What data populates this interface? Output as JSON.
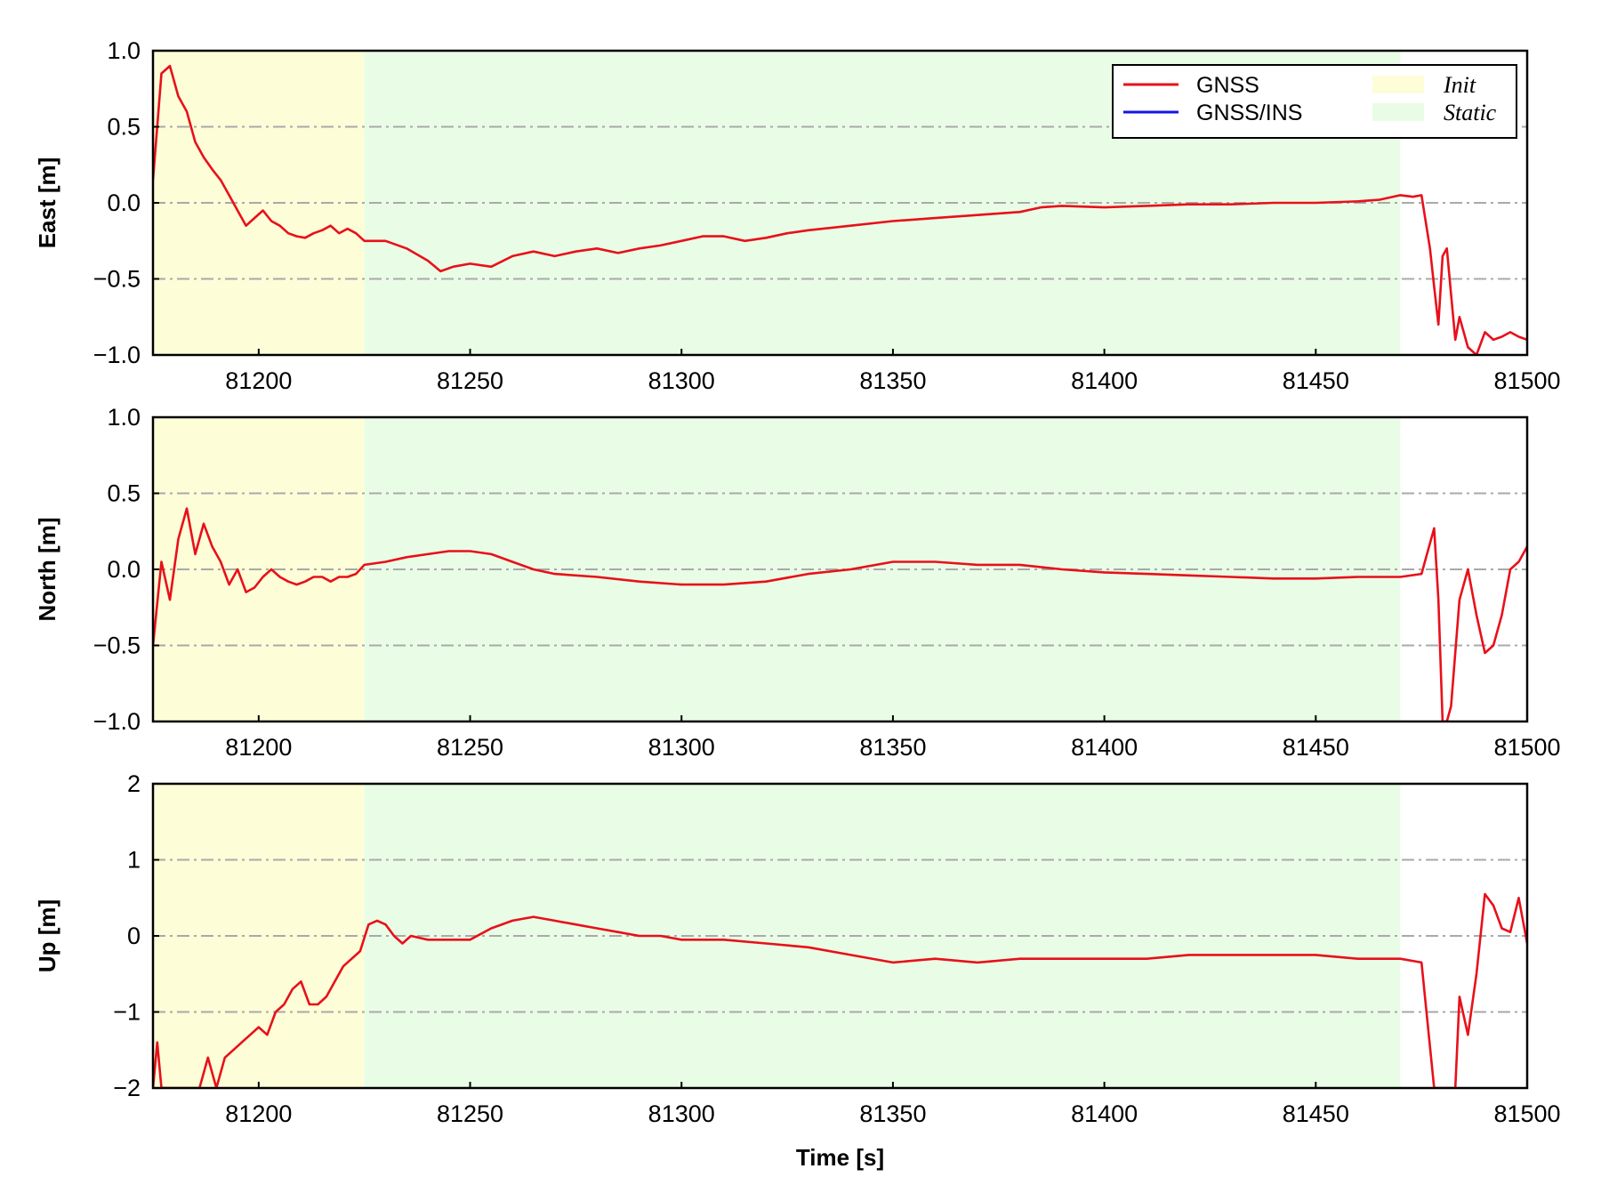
{
  "chart_data": {
    "type": "line",
    "xlabel": "Time [s]",
    "xlim": [
      81175,
      81500
    ],
    "xticks": [
      81200,
      81250,
      81300,
      81350,
      81400,
      81450,
      81500
    ],
    "grid": "horizontal dash-dot",
    "legend": {
      "placement": "top-right of first panel",
      "lines": [
        {
          "name": "GNSS",
          "color": "#e8101a"
        },
        {
          "name": "GNSS/INS",
          "color": "#1515e8"
        }
      ],
      "shades": [
        {
          "name": "Init",
          "color": "#fdfdd8"
        },
        {
          "name": "Static",
          "color": "#e9fde6"
        }
      ]
    },
    "regions": [
      {
        "name": "Init",
        "x": [
          81175,
          81225
        ]
      },
      {
        "name": "Static",
        "x": [
          81225,
          81470
        ]
      }
    ],
    "panels": [
      {
        "ylabel": "East [m]",
        "ylim": [
          -1.0,
          1.0
        ],
        "yticks": [
          "−1.0",
          "−0.5",
          "0.0",
          "0.5",
          "1.0"
        ],
        "ytick_values": [
          -1.0,
          -0.5,
          0.0,
          0.5,
          1.0
        ],
        "series": [
          {
            "name": "GNSS",
            "color": "#e8101a",
            "x": [
              81175,
              81177,
              81179,
              81181,
              81183,
              81185,
              81187,
              81189,
              81191,
              81193,
              81195,
              81197,
              81199,
              81201,
              81203,
              81205,
              81207,
              81209,
              81211,
              81213,
              81215,
              81217,
              81219,
              81221,
              81223,
              81225,
              81230,
              81235,
              81240,
              81243,
              81246,
              81250,
              81255,
              81260,
              81265,
              81270,
              81275,
              81280,
              81285,
              81290,
              81295,
              81300,
              81305,
              81310,
              81315,
              81320,
              81325,
              81330,
              81340,
              81350,
              81360,
              81370,
              81380,
              81385,
              81390,
              81400,
              81410,
              81420,
              81430,
              81440,
              81450,
              81460,
              81465,
              81470,
              81473,
              81475,
              81477,
              81478,
              81479,
              81480,
              81481,
              81482,
              81483,
              81484,
              81486,
              81488,
              81490,
              81492,
              81494,
              81496,
              81498,
              81500
            ],
            "y": [
              0.15,
              0.85,
              0.9,
              0.7,
              0.6,
              0.4,
              0.3,
              0.22,
              0.15,
              0.05,
              -0.05,
              -0.15,
              -0.1,
              -0.05,
              -0.12,
              -0.15,
              -0.2,
              -0.22,
              -0.23,
              -0.2,
              -0.18,
              -0.15,
              -0.2,
              -0.17,
              -0.2,
              -0.25,
              -0.25,
              -0.3,
              -0.38,
              -0.45,
              -0.42,
              -0.4,
              -0.42,
              -0.35,
              -0.32,
              -0.35,
              -0.32,
              -0.3,
              -0.33,
              -0.3,
              -0.28,
              -0.25,
              -0.22,
              -0.22,
              -0.25,
              -0.23,
              -0.2,
              -0.18,
              -0.15,
              -0.12,
              -0.1,
              -0.08,
              -0.06,
              -0.03,
              -0.02,
              -0.03,
              -0.02,
              -0.01,
              -0.01,
              0.0,
              0.0,
              0.01,
              0.02,
              0.05,
              0.04,
              0.05,
              -0.3,
              -0.55,
              -0.8,
              -0.35,
              -0.3,
              -0.6,
              -0.9,
              -0.75,
              -0.95,
              -1.0,
              -0.85,
              -0.9,
              -0.88,
              -0.85,
              -0.88,
              -0.9
            ]
          }
        ]
      },
      {
        "ylabel": "North [m]",
        "ylim": [
          -1.0,
          1.0
        ],
        "yticks": [
          "−1.0",
          "−0.5",
          "0.0",
          "0.5",
          "1.0"
        ],
        "ytick_values": [
          -1.0,
          -0.5,
          0.0,
          0.5,
          1.0
        ],
        "series": [
          {
            "name": "GNSS",
            "color": "#e8101a",
            "x": [
              81175,
              81177,
              81179,
              81181,
              81183,
              81185,
              81187,
              81189,
              81191,
              81193,
              81195,
              81197,
              81199,
              81201,
              81203,
              81205,
              81207,
              81209,
              81211,
              81213,
              81215,
              81217,
              81219,
              81221,
              81223,
              81225,
              81230,
              81235,
              81240,
              81245,
              81250,
              81255,
              81260,
              81265,
              81270,
              81280,
              81290,
              81300,
              81310,
              81320,
              81330,
              81340,
              81350,
              81360,
              81370,
              81380,
              81390,
              81400,
              81410,
              81420,
              81430,
              81440,
              81450,
              81460,
              81470,
              81475,
              81478,
              81479,
              81480,
              81481,
              81482,
              81484,
              81486,
              81488,
              81490,
              81492,
              81494,
              81496,
              81498,
              81500
            ],
            "y": [
              -0.5,
              0.05,
              -0.2,
              0.2,
              0.4,
              0.1,
              0.3,
              0.15,
              0.05,
              -0.1,
              0.0,
              -0.15,
              -0.12,
              -0.05,
              0.0,
              -0.05,
              -0.08,
              -0.1,
              -0.08,
              -0.05,
              -0.05,
              -0.08,
              -0.05,
              -0.05,
              -0.03,
              0.03,
              0.05,
              0.08,
              0.1,
              0.12,
              0.12,
              0.1,
              0.05,
              0.0,
              -0.03,
              -0.05,
              -0.08,
              -0.1,
              -0.1,
              -0.08,
              -0.03,
              0.0,
              0.05,
              0.05,
              0.03,
              0.03,
              0.0,
              -0.02,
              -0.03,
              -0.04,
              -0.05,
              -0.06,
              -0.06,
              -0.05,
              -0.05,
              -0.03,
              0.27,
              -0.2,
              -1.0,
              -1.0,
              -0.9,
              -0.2,
              0.0,
              -0.3,
              -0.55,
              -0.5,
              -0.3,
              0.0,
              0.05,
              0.15
            ]
          }
        ]
      },
      {
        "ylabel": "Up [m]",
        "ylim": [
          -2,
          2
        ],
        "yticks": [
          "−2",
          "−1",
          "0",
          "1",
          "2"
        ],
        "ytick_values": [
          -2,
          -1,
          0,
          1,
          2
        ],
        "series": [
          {
            "name": "GNSS",
            "color": "#e8101a",
            "x": [
              81175,
              81176,
              81177,
              81178,
              81180,
              81182,
              81184,
              81186,
              81188,
              81190,
              81192,
              81194,
              81196,
              81198,
              81200,
              81202,
              81204,
              81206,
              81208,
              81210,
              81212,
              81214,
              81216,
              81218,
              81220,
              81222,
              81224,
              81226,
              81228,
              81230,
              81232,
              81234,
              81236,
              81240,
              81245,
              81250,
              81255,
              81260,
              81265,
              81270,
              81275,
              81280,
              81285,
              81290,
              81295,
              81300,
              81310,
              81320,
              81330,
              81340,
              81350,
              81360,
              81370,
              81380,
              81390,
              81400,
              81410,
              81420,
              81430,
              81440,
              81450,
              81460,
              81470,
              81475,
              81478,
              81479,
              81480,
              81481,
              81482,
              81483,
              81484,
              81486,
              81488,
              81490,
              81492,
              81494,
              81496,
              81498,
              81500
            ],
            "y": [
              -2.0,
              -1.4,
              -2.0,
              -2.0,
              -2.0,
              -2.0,
              -2.0,
              -2.0,
              -1.6,
              -2.0,
              -1.6,
              -1.5,
              -1.4,
              -1.3,
              -1.2,
              -1.3,
              -1.0,
              -0.9,
              -0.7,
              -0.6,
              -0.9,
              -0.9,
              -0.8,
              -0.6,
              -0.4,
              -0.3,
              -0.2,
              0.15,
              0.2,
              0.15,
              0.0,
              -0.1,
              0.0,
              -0.05,
              -0.05,
              -0.05,
              0.1,
              0.2,
              0.25,
              0.2,
              0.15,
              0.1,
              0.05,
              0.0,
              0.0,
              -0.05,
              -0.05,
              -0.1,
              -0.15,
              -0.25,
              -0.35,
              -0.3,
              -0.35,
              -0.3,
              -0.3,
              -0.3,
              -0.3,
              -0.25,
              -0.25,
              -0.25,
              -0.25,
              -0.3,
              -0.3,
              -0.35,
              -2.0,
              -2.0,
              -2.0,
              -2.0,
              -2.0,
              -2.0,
              -0.8,
              -1.3,
              -0.5,
              0.55,
              0.4,
              0.1,
              0.05,
              0.5,
              -0.1
            ]
          }
        ]
      }
    ]
  }
}
